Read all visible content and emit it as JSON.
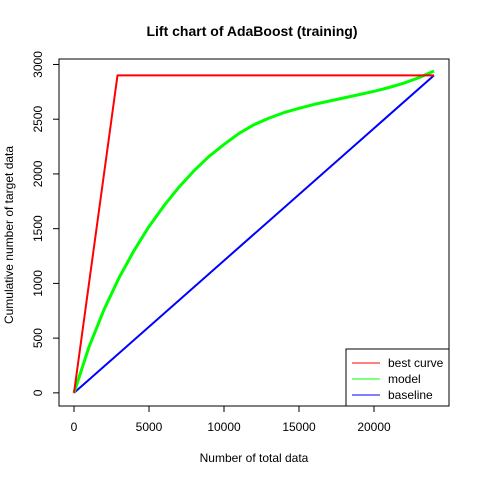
{
  "chart_data": {
    "type": "line",
    "title": "Lift chart of AdaBoost (training)",
    "xlabel": "Number of total data",
    "ylabel": "Cumulative number of target data",
    "xlim": [
      -1000,
      25000
    ],
    "ylim": [
      -120,
      3050
    ],
    "xticks": [
      0,
      5000,
      10000,
      15000,
      20000
    ],
    "yticks": [
      0,
      500,
      1000,
      1500,
      2000,
      2500,
      3000
    ],
    "grid": false,
    "legend_position": "bottom-right",
    "series": [
      {
        "name": "best curve",
        "color": "#ff0000",
        "x": [
          0,
          2900,
          24000
        ],
        "y": [
          0,
          2900,
          2900
        ]
      },
      {
        "name": "model",
        "color": "#00ff00",
        "x": [
          0,
          1000,
          2000,
          3000,
          4000,
          5000,
          6000,
          7000,
          8000,
          9000,
          10000,
          11000,
          12000,
          13000,
          14000,
          15000,
          16000,
          17000,
          18000,
          19000,
          20000,
          21000,
          22000,
          23000,
          24000
        ],
        "y": [
          0,
          420,
          760,
          1050,
          1300,
          1520,
          1710,
          1880,
          2030,
          2160,
          2270,
          2370,
          2450,
          2510,
          2560,
          2600,
          2635,
          2665,
          2695,
          2725,
          2755,
          2790,
          2830,
          2880,
          2940
        ]
      },
      {
        "name": "baseline",
        "color": "#0000ff",
        "x": [
          0,
          24000
        ],
        "y": [
          0,
          2900
        ]
      }
    ]
  }
}
